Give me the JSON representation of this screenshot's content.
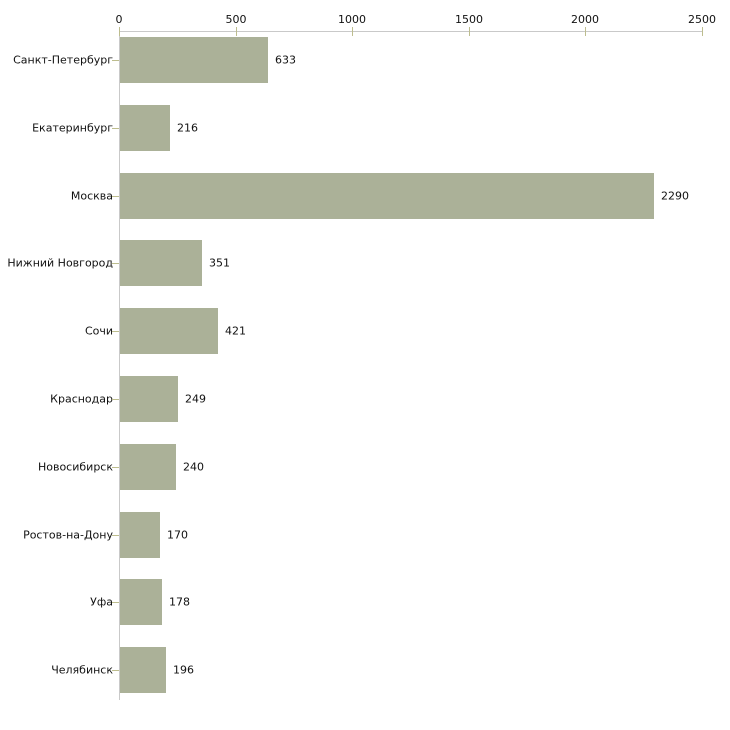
{
  "chart_data": {
    "type": "bar",
    "orientation": "horizontal",
    "title": "",
    "xlabel": "",
    "ylabel": "",
    "categories": [
      "Санкт-Петербург",
      "Екатеринбург",
      "Москва",
      "Нижний Новгород",
      "Сочи",
      "Краснодар",
      "Новосибирск",
      "Ростов-на-Дону",
      "Уфа",
      "Челябинск"
    ],
    "values": [
      633,
      216,
      2290,
      351,
      421,
      249,
      240,
      170,
      178,
      196
    ],
    "value_labels": [
      "633",
      "216",
      "2290",
      "351",
      "421",
      "249",
      "240",
      "170",
      "178",
      "196"
    ],
    "xlim": [
      0,
      2500
    ],
    "xticks": [
      0,
      500,
      1000,
      1500,
      2000,
      2500
    ],
    "xtick_labels": [
      "0",
      "500",
      "1000",
      "1500",
      "2000",
      "2500"
    ],
    "axis_position": "top",
    "grid": false,
    "legend": "none",
    "colors": {
      "bar_fill": "#abb198",
      "axis_line": "#c9c9c9",
      "tick_mark": "#bdbd8e",
      "text": "#111111",
      "background": "#ffffff"
    }
  }
}
